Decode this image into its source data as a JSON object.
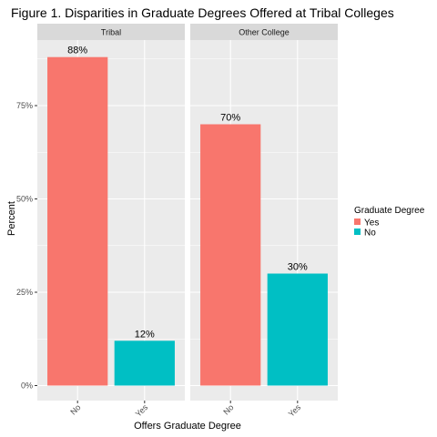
{
  "chart_data": {
    "type": "bar",
    "title": "Figure 1. Disparities in Graduate Degrees Offered at Tribal Colleges",
    "xlabel": "Offers Graduate Degree",
    "ylabel": "Percent",
    "ylim": [
      0,
      0.92
    ],
    "yticks": [
      0,
      0.25,
      0.5,
      0.75
    ],
    "ytick_labels": [
      "0%",
      "25%",
      "50%",
      "75%"
    ],
    "grid": true,
    "categories": [
      "No",
      "Yes"
    ],
    "facets": [
      {
        "label": "Tribal",
        "bars": [
          {
            "category": "No",
            "value": 0.88,
            "label": "88%",
            "fill": "Yes"
          },
          {
            "category": "Yes",
            "value": 0.12,
            "label": "12%",
            "fill": "No"
          }
        ]
      },
      {
        "label": "Other College",
        "bars": [
          {
            "category": "No",
            "value": 0.7,
            "label": "70%",
            "fill": "Yes"
          },
          {
            "category": "Yes",
            "value": 0.3,
            "label": "30%",
            "fill": "No"
          }
        ]
      }
    ],
    "legend": {
      "title": "Graduate Degree",
      "position": "right",
      "entries": [
        {
          "label": "Yes",
          "color": "#f8766d"
        },
        {
          "label": "No",
          "color": "#00bfc4"
        }
      ]
    },
    "colors": {
      "Yes": "#f8766d",
      "No": "#00bfc4",
      "panel_background": "#ebebeb",
      "strip_background": "#d9d9d9",
      "grid": "#ffffff"
    }
  }
}
